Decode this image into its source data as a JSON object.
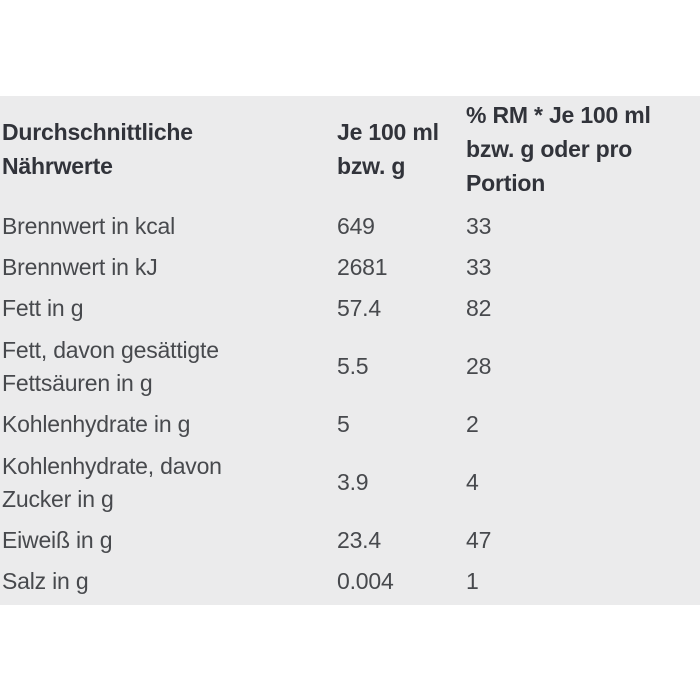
{
  "page": {
    "background_color": "#ffffff",
    "band_background_color": "#ebebec",
    "header_text_color": "#31333a",
    "body_text_color": "#47494d"
  },
  "table": {
    "columns": [
      {
        "label": "Durchschnittliche\nNährwerte"
      },
      {
        "label": "Je 100 ml\nbzw. g"
      },
      {
        "label": "% RM * Je 100 ml\nbzw. g oder pro\nPortion"
      }
    ],
    "rows": [
      {
        "label": "Brennwert in kcal",
        "per_100": "649",
        "rm_percent": "33"
      },
      {
        "label": "Brennwert in kJ",
        "per_100": "2681",
        "rm_percent": "33"
      },
      {
        "label": "Fett in g",
        "per_100": "57.4",
        "rm_percent": "82"
      },
      {
        "label": "Fett, davon gesättigte\nFettsäuren in g",
        "per_100": "5.5",
        "rm_percent": "28"
      },
      {
        "label": "Kohlenhydrate in g",
        "per_100": "5",
        "rm_percent": "2"
      },
      {
        "label": "Kohlenhydrate, davon\nZucker in g",
        "per_100": "3.9",
        "rm_percent": "4"
      },
      {
        "label": "Eiweiß in g",
        "per_100": "23.4",
        "rm_percent": "47"
      },
      {
        "label": "Salz in g",
        "per_100": "0.004",
        "rm_percent": "1"
      }
    ]
  }
}
